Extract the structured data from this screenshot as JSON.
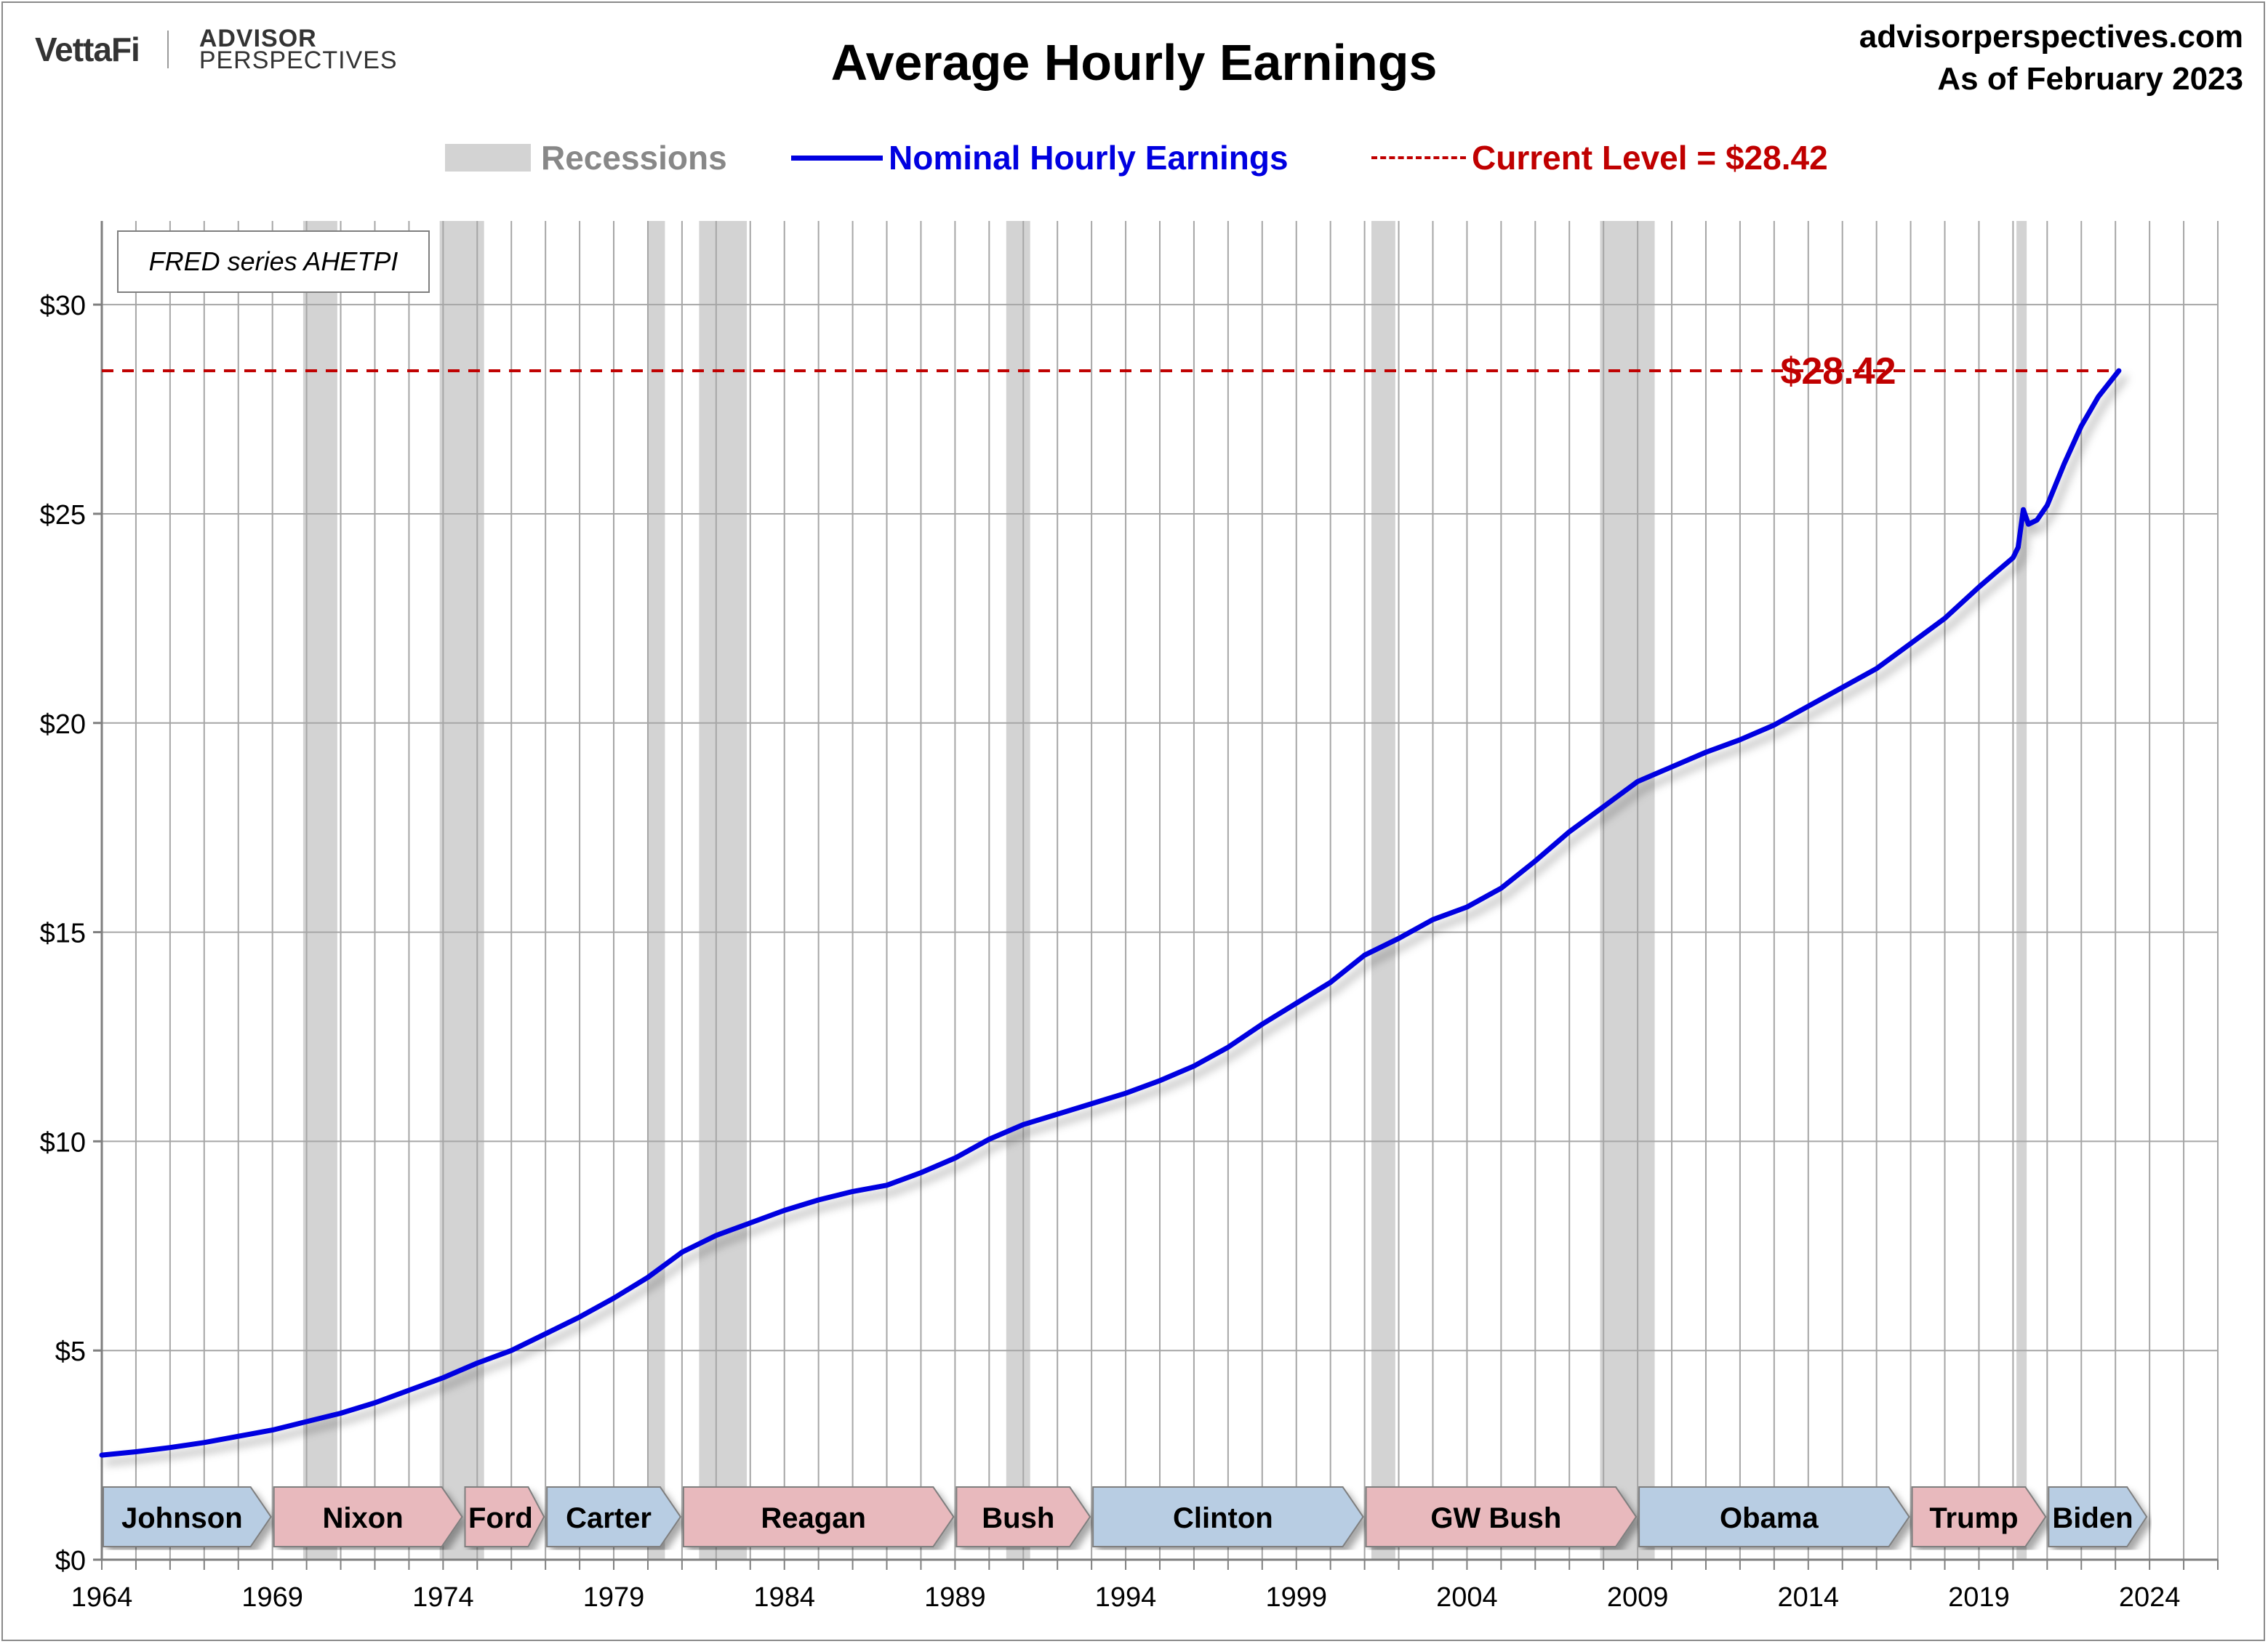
{
  "branding": {
    "vettafi": "VettaFi",
    "advisor_line1": "ADVISOR",
    "advisor_line2": "PERSPECTIVES"
  },
  "site": {
    "url": "advisorperspectives.com",
    "as_of": "As of February 2023"
  },
  "colors": {
    "series": "#0000e0",
    "current_level": "#c00000",
    "recession": "#d3d3d3",
    "democrat_box": "#b8cde3",
    "republican_box": "#e8b9bd",
    "grid": "#a6a6a6"
  },
  "chart_data": {
    "type": "line",
    "title": "Average Hourly Earnings",
    "source_note": "FRED series AHETPI",
    "xlabel": "",
    "ylabel": "",
    "xlim": [
      1964,
      2026
    ],
    "ylim": [
      0,
      32
    ],
    "grid": true,
    "legend_position": "top-center",
    "x_ticks": [
      "1964",
      "1969",
      "1974",
      "1979",
      "1984",
      "1989",
      "1994",
      "1999",
      "2004",
      "2009",
      "2014",
      "2019",
      "2024"
    ],
    "y_ticks": [
      "$0",
      "$5",
      "$10",
      "$15",
      "$20",
      "$25",
      "$30"
    ],
    "y_tick_values": [
      0,
      5,
      10,
      15,
      20,
      25,
      30
    ],
    "legend": {
      "recessions": "Recessions",
      "series": "Nominal Hourly Earnings",
      "current_level": "Current Level = $28.42"
    },
    "current_level": {
      "value": 28.42,
      "label": "$28.42"
    },
    "recessions": [
      [
        1969.9,
        1970.9
      ],
      [
        1973.9,
        1975.2
      ],
      [
        1980.0,
        1980.5
      ],
      [
        1981.5,
        1982.9
      ],
      [
        1990.5,
        1991.2
      ],
      [
        2001.2,
        2001.9
      ],
      [
        2007.9,
        2009.5
      ],
      [
        2020.1,
        2020.4
      ]
    ],
    "presidents": [
      {
        "name": "Johnson",
        "start": 1964.0,
        "end": 1969.0,
        "party": "D"
      },
      {
        "name": "Nixon",
        "start": 1969.0,
        "end": 1974.6,
        "party": "R"
      },
      {
        "name": "Ford",
        "start": 1974.6,
        "end": 1977.0,
        "party": "R"
      },
      {
        "name": "Carter",
        "start": 1977.0,
        "end": 1981.0,
        "party": "D"
      },
      {
        "name": "Reagan",
        "start": 1981.0,
        "end": 1989.0,
        "party": "R"
      },
      {
        "name": "Bush",
        "start": 1989.0,
        "end": 1993.0,
        "party": "R"
      },
      {
        "name": "Clinton",
        "start": 1993.0,
        "end": 2001.0,
        "party": "D"
      },
      {
        "name": "GW Bush",
        "start": 2001.0,
        "end": 2009.0,
        "party": "R"
      },
      {
        "name": "Obama",
        "start": 2009.0,
        "end": 2017.0,
        "party": "D"
      },
      {
        "name": "Trump",
        "start": 2017.0,
        "end": 2021.0,
        "party": "R"
      },
      {
        "name": "Biden",
        "start": 2021.0,
        "end": 2024.0,
        "party": "D"
      }
    ],
    "series": [
      {
        "name": "Nominal Hourly Earnings",
        "x": [
          1964,
          1965,
          1966,
          1967,
          1968,
          1969,
          1970,
          1971,
          1972,
          1973,
          1974,
          1975,
          1976,
          1977,
          1978,
          1979,
          1980,
          1981,
          1982,
          1983,
          1984,
          1985,
          1986,
          1987,
          1988,
          1989,
          1990,
          1991,
          1992,
          1993,
          1994,
          1995,
          1996,
          1997,
          1998,
          1999,
          2000,
          2001,
          2002,
          2003,
          2004,
          2005,
          2006,
          2007,
          2008,
          2009,
          2010,
          2011,
          2012,
          2013,
          2014,
          2015,
          2016,
          2017,
          2018,
          2019,
          2019.5,
          2020.0,
          2020.15,
          2020.3,
          2020.45,
          2020.7,
          2021.0,
          2021.5,
          2022.0,
          2022.5,
          2023.1
        ],
        "y": [
          2.5,
          2.58,
          2.68,
          2.8,
          2.95,
          3.1,
          3.3,
          3.5,
          3.75,
          4.05,
          4.35,
          4.7,
          5.0,
          5.4,
          5.8,
          6.25,
          6.75,
          7.35,
          7.75,
          8.05,
          8.35,
          8.6,
          8.8,
          8.95,
          9.25,
          9.6,
          10.05,
          10.4,
          10.65,
          10.9,
          11.15,
          11.45,
          11.8,
          12.25,
          12.8,
          13.3,
          13.8,
          14.45,
          14.85,
          15.3,
          15.6,
          16.05,
          16.7,
          17.4,
          18.0,
          18.6,
          18.95,
          19.3,
          19.6,
          19.95,
          20.4,
          20.85,
          21.3,
          21.9,
          22.5,
          23.25,
          23.6,
          23.95,
          24.2,
          25.1,
          24.75,
          24.85,
          25.2,
          26.2,
          27.1,
          27.8,
          28.42
        ]
      }
    ]
  }
}
